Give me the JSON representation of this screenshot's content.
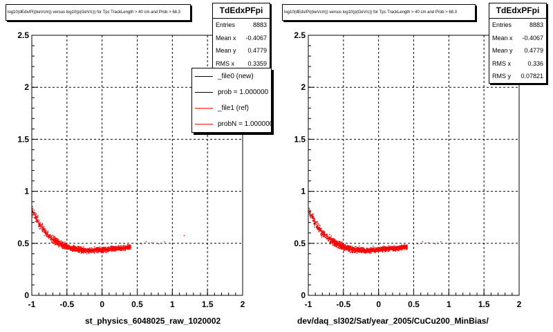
{
  "colors": {
    "marker": "#ff0000",
    "reference": "#000000",
    "frame": "#000000",
    "grid": "#000000"
  },
  "panels": [
    {
      "id": "left",
      "title": "log10(dEdx/Pi)(keVcm)) versus log10(p(GeV/c)) for Tpc TrackLength > 40 cm and Prob > 68.3",
      "stats": {
        "name": "TdEdxPFpi",
        "rows": [
          {
            "label": "Entries",
            "value": "8883"
          },
          {
            "label": "Mean x",
            "value": "-0.4067"
          },
          {
            "label": "Mean y",
            "value": "0.4779"
          },
          {
            "label": "RMS x",
            "value": "0.3359"
          }
        ]
      },
      "legend": [
        {
          "label": "_file0 (new)",
          "color": "#000000"
        },
        {
          "label": "prob = 1.000000",
          "color": "#000000"
        },
        {
          "label": "_file1 (ref)",
          "color": "#ff0000"
        },
        {
          "label": "probN = 1.000000",
          "color": "#ff0000"
        }
      ],
      "xtitle": "st_physics_6048025_raw_1020002"
    },
    {
      "id": "right",
      "title": "log10(dEdx/Pi)(keVcm)) versus log10(p(GeV/c)) for Tpc TrackLength > 40 cm and Prob > 68.3",
      "stats": {
        "name": "TdEdxPFpi",
        "rows": [
          {
            "label": "Entries",
            "value": "8883"
          },
          {
            "label": "Mean x",
            "value": "-0.4067"
          },
          {
            "label": "Mean y",
            "value": "0.4779"
          },
          {
            "label": "RMS x",
            "value": "0.336"
          },
          {
            "label": "RMS y",
            "value": "0.07821"
          }
        ]
      },
      "xtitle": "dev/daq_sl302/Sat/year_2005/CuCu200_MinBias/"
    }
  ],
  "chart_data": [
    {
      "type": "scatter",
      "title": "log10(dEdx/Pi)(keVcm)) versus log10(p(GeV/c)) for Tpc TrackLength > 40 cm and Prob > 68.3",
      "xlabel": "st_physics_6048025_raw_1020002",
      "ylabel": "",
      "xlim": [
        -1,
        2
      ],
      "ylim": [
        0,
        2.5
      ],
      "xticks": [
        "-1",
        "-0.5",
        "0",
        "0.5",
        "1",
        "1.5",
        "2"
      ],
      "yticks": [
        "0",
        "0.5",
        "1",
        "1.5",
        "2",
        "2.5"
      ],
      "grid": true,
      "legend_position": "top-right",
      "series": [
        {
          "name": "_file1 (ref)",
          "color": "#ff0000",
          "band": {
            "x": [
              -1.0,
              -0.9,
              -0.8,
              -0.7,
              -0.6,
              -0.5,
              -0.4,
              -0.3,
              -0.2,
              -0.1,
              0.0,
              0.1,
              0.2,
              0.3,
              0.4
            ],
            "y": [
              0.82,
              0.69,
              0.6,
              0.54,
              0.5,
              0.47,
              0.45,
              0.44,
              0.435,
              0.44,
              0.445,
              0.45,
              0.455,
              0.46,
              0.47
            ],
            "spread": [
              0.07,
              0.07,
              0.065,
              0.06,
              0.055,
              0.05,
              0.045,
              0.045,
              0.04,
              0.04,
              0.04,
              0.04,
              0.04,
              0.035,
              0.035
            ]
          },
          "sparse_points": [
            [
              0.55,
              0.5
            ],
            [
              0.62,
              0.52
            ],
            [
              0.7,
              0.51
            ],
            [
              0.8,
              0.5
            ],
            [
              0.88,
              0.52
            ],
            [
              1.16,
              0.58
            ]
          ]
        }
      ]
    },
    {
      "type": "scatter",
      "title": "log10(dEdx/Pi)(keVcm)) versus log10(p(GeV/c)) for Tpc TrackLength > 40 cm and Prob > 68.3",
      "xlabel": "dev/daq_sl302/Sat/year_2005/CuCu200_MinBias/",
      "ylabel": "",
      "xlim": [
        -1,
        2
      ],
      "ylim": [
        0,
        2.5
      ],
      "xticks": [
        "-1",
        "-0.5",
        "0",
        "0.5",
        "1",
        "1.5",
        "2"
      ],
      "yticks": [
        "0",
        "0.5",
        "1",
        "1.5",
        "2",
        "2.5"
      ],
      "grid": true,
      "series": [
        {
          "name": "TdEdxPFpi",
          "color": "#ff0000",
          "band": {
            "x": [
              -1.0,
              -0.9,
              -0.8,
              -0.7,
              -0.6,
              -0.5,
              -0.4,
              -0.3,
              -0.2,
              -0.1,
              0.0,
              0.1,
              0.2,
              0.3,
              0.4
            ],
            "y": [
              0.82,
              0.69,
              0.6,
              0.54,
              0.5,
              0.47,
              0.45,
              0.44,
              0.435,
              0.44,
              0.445,
              0.45,
              0.455,
              0.46,
              0.47
            ],
            "spread": [
              0.07,
              0.07,
              0.065,
              0.06,
              0.055,
              0.05,
              0.045,
              0.045,
              0.04,
              0.04,
              0.04,
              0.04,
              0.04,
              0.035,
              0.035
            ]
          },
          "sparse_points": [
            [
              0.55,
              0.5
            ],
            [
              0.62,
              0.52
            ],
            [
              0.7,
              0.51
            ],
            [
              0.8,
              0.5
            ],
            [
              0.88,
              0.52
            ]
          ]
        }
      ]
    }
  ]
}
